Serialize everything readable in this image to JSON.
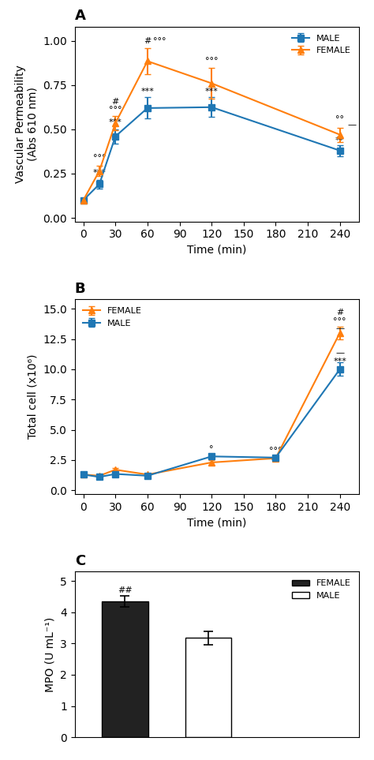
{
  "chart_data": [
    {
      "type": "line",
      "title": "A",
      "x_label": "Time (min)",
      "y_label": "Vascular Permeability\n(Abs 610 nm)",
      "x": [
        0,
        15,
        30,
        60,
        120,
        240
      ],
      "xlim": [
        -8,
        258
      ],
      "ylim": [
        -0.02,
        1.08
      ],
      "xticks": [
        0,
        30,
        60,
        90,
        120,
        150,
        180,
        210,
        240
      ],
      "yticks": [
        {
          "value": 0.0,
          "label": "0.00"
        },
        {
          "value": 0.25,
          "label": "0.25"
        },
        {
          "value": 0.5,
          "label": "0.50"
        },
        {
          "value": 0.75,
          "label": "0.75"
        },
        {
          "value": 1.0,
          "label": "1.00"
        }
      ],
      "legend": "upper right",
      "series": [
        {
          "name": "MALE",
          "marker": "square",
          "line_style": "solid",
          "values": [
            0.1,
            0.19,
            0.46,
            0.62,
            0.625,
            0.38
          ],
          "errors": [
            0.01,
            0.025,
            0.04,
            0.06,
            0.055,
            0.03
          ]
        },
        {
          "name": "FEMALE",
          "marker": "triangle",
          "line_style": "solid",
          "values": [
            0.1,
            0.265,
            0.535,
            0.885,
            0.76,
            0.47
          ],
          "errors": [
            0.01,
            0.03,
            0.04,
            0.075,
            0.085,
            0.04
          ]
        }
      ],
      "annotations": [
        {
          "x": 30,
          "y": 0.635,
          "text": "#"
        },
        {
          "x": 60,
          "y": 0.978,
          "text": "#"
        },
        {
          "x": 15,
          "y": 0.315,
          "text": "°°°"
        },
        {
          "x": 30,
          "y": 0.59,
          "text": "°°°"
        },
        {
          "x": 60,
          "y": 0.975,
          "text": "°°°"
        },
        {
          "x": 120,
          "y": 0.865,
          "text": "°°°"
        },
        {
          "x": 240,
          "y": 0.535,
          "text": "°°"
        },
        {
          "x": 15,
          "y": 0.23,
          "text": "***"
        },
        {
          "x": 30,
          "y": 0.515,
          "text": "***"
        },
        {
          "x": 60,
          "y": 0.69,
          "text": "***"
        },
        {
          "x": 120,
          "y": 0.69,
          "text": "***"
        },
        {
          "x": 240,
          "y": 0.505,
          "text": "—"
        },
        {
          "x": 240,
          "y": 0.415,
          "text": "**"
        }
      ]
    },
    {
      "type": "line",
      "title": "B",
      "x_label": "Time (min)",
      "y_label": "Total cell (x10⁶)",
      "x": [
        0,
        15,
        30,
        60,
        120,
        180,
        240
      ],
      "xlim": [
        -8,
        258
      ],
      "ylim": [
        -0.3,
        15.8
      ],
      "xticks": [
        0,
        30,
        60,
        90,
        120,
        150,
        180,
        210,
        240
      ],
      "yticks": [
        0.0,
        2.5,
        5.0,
        7.5,
        10.0,
        12.5,
        15.0
      ],
      "legend": "upper left",
      "series": [
        {
          "name": "FEMALE",
          "marker": "triangle",
          "line_style": "solid",
          "values": [
            1.3,
            1.2,
            1.7,
            1.3,
            2.3,
            2.65,
            13.0
          ],
          "errors": [
            0.1,
            0.1,
            0.15,
            0.1,
            0.18,
            0.2,
            0.5
          ]
        },
        {
          "name": "MALE",
          "marker": "square",
          "line_style": "solid",
          "values": [
            1.3,
            1.1,
            1.35,
            1.2,
            2.8,
            2.7,
            10.0
          ],
          "errors": [
            0.1,
            0.1,
            0.1,
            0.1,
            0.2,
            0.2,
            0.55
          ]
        }
      ],
      "annotations": [
        {
          "x": 120,
          "y": 3.05,
          "text": "°"
        },
        {
          "x": 120,
          "y": 2.15,
          "text": "*"
        },
        {
          "x": 180,
          "y": 2.95,
          "text": "°°°"
        },
        {
          "x": 180,
          "y": 2.1,
          "text": "**"
        },
        {
          "x": 240,
          "y": 14.35,
          "text": "#"
        },
        {
          "x": 240,
          "y": 13.65,
          "text": "°°°"
        },
        {
          "x": 240,
          "y": 13.05,
          "text": "—"
        },
        {
          "x": 240,
          "y": 11.05,
          "text": "—"
        },
        {
          "x": 240,
          "y": 10.35,
          "text": "***"
        }
      ]
    },
    {
      "type": "bar",
      "title": "C",
      "y_label": "MPO (U mL⁻¹)",
      "categories": [
        null,
        null
      ],
      "ylim": [
        0,
        5.3
      ],
      "yticks": [
        0,
        1,
        2,
        3,
        4,
        5
      ],
      "tick_labels": "y",
      "legend": "upper right",
      "series": [
        {
          "name": "FEMALE",
          "color": "#222222",
          "values": [
            4.35,
            null
          ],
          "errors": [
            0.18,
            null
          ]
        },
        {
          "name": "MALE",
          "color": "#ffffff",
          "values": [
            null,
            3.18
          ],
          "errors": [
            null,
            0.22
          ]
        }
      ],
      "annotations": [
        {
          "x": 0,
          "y": 4.57,
          "text": "##"
        }
      ]
    }
  ]
}
